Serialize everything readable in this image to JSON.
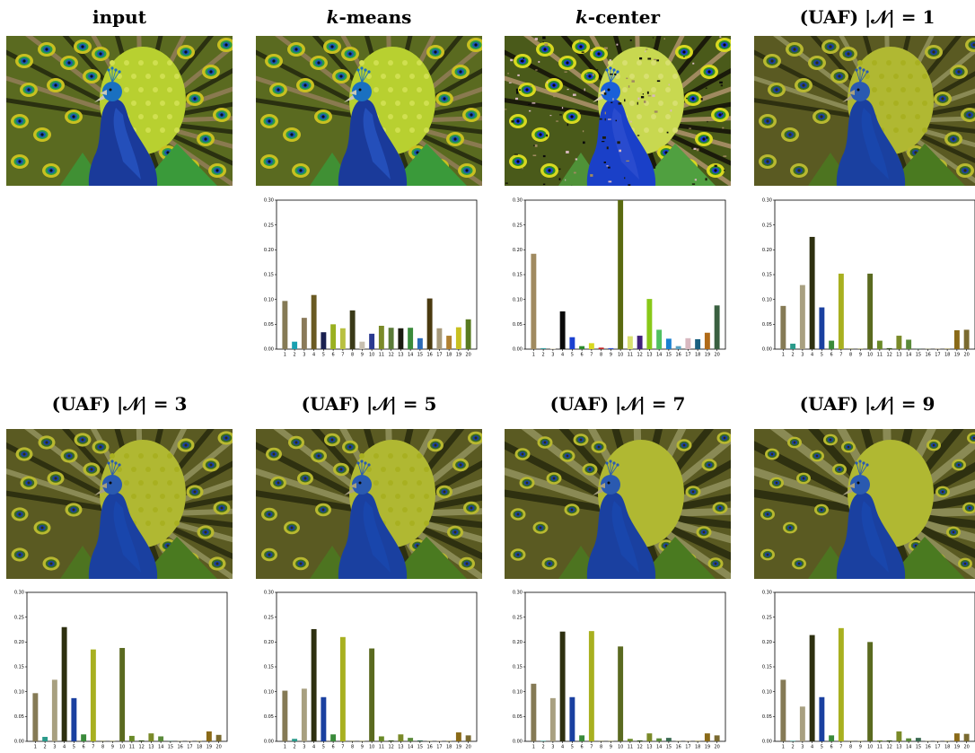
{
  "panels": [
    {
      "title": "input",
      "title_math": "",
      "image": "peacock-original",
      "has_chart": false
    },
    {
      "title": "k",
      "title_math": "-means",
      "image": "peacock-kmeans",
      "has_chart": true
    },
    {
      "title": "k",
      "title_math": "-center",
      "image": "peacock-kcenter",
      "has_chart": true
    },
    {
      "title": "(UAF) |𝒩| = 1",
      "title_math": "",
      "image": "peacock-uaf1",
      "has_chart": true
    },
    {
      "title": "(UAF) |𝒩| = 3",
      "title_math": "",
      "image": "peacock-uaf3",
      "has_chart": true
    },
    {
      "title": "(UAF) |𝒩| = 5",
      "title_math": "",
      "image": "peacock-uaf5",
      "has_chart": true
    },
    {
      "title": "(UAF) |𝒩| = 7",
      "title_math": "",
      "image": "peacock-uaf7",
      "has_chart": true
    },
    {
      "title": "(UAF) |𝒩| = 9",
      "title_math": "",
      "image": "peacock-uaf9",
      "has_chart": true
    }
  ],
  "chart_data": [
    {
      "type": "bar",
      "panel": 1,
      "categories": [
        "1",
        "2",
        "3",
        "4",
        "5",
        "6",
        "7",
        "8",
        "9",
        "10",
        "11",
        "12",
        "13",
        "14",
        "15",
        "16",
        "17",
        "18",
        "19",
        "20"
      ],
      "values": [
        0.097,
        0.015,
        0.063,
        0.109,
        0.034,
        0.05,
        0.042,
        0.078,
        0.015,
        0.031,
        0.047,
        0.043,
        0.042,
        0.043,
        0.022,
        0.102,
        0.042,
        0.027,
        0.044,
        0.06
      ],
      "colors": [
        "#857a55",
        "#1aa0b0",
        "#8a7a5a",
        "#6a5a22",
        "#1a2050",
        "#9ab020",
        "#b8c040",
        "#3a3a18",
        "#c8c0b0",
        "#2a3a90",
        "#7a8a28",
        "#5a7a38",
        "#1a1a10",
        "#3a8a3a",
        "#2a6ab8",
        "#4a3a10",
        "#a89a7a",
        "#b08030",
        "#c8c020",
        "#587a20"
      ],
      "ylim": [
        0,
        0.3
      ],
      "yticks": [
        "0.00",
        "0.05",
        "0.10",
        "0.15",
        "0.20",
        "0.25",
        "0.30"
      ]
    },
    {
      "type": "bar",
      "panel": 2,
      "categories": [
        "1",
        "2",
        "3",
        "4",
        "5",
        "6",
        "7",
        "8",
        "9",
        "10",
        "11",
        "12",
        "13",
        "14",
        "15",
        "16",
        "17",
        "18",
        "19",
        "20"
      ],
      "values": [
        0.192,
        0.002,
        0.001,
        0.076,
        0.024,
        0.006,
        0.012,
        0.003,
        0.002,
        0.3,
        0.026,
        0.027,
        0.101,
        0.039,
        0.021,
        0.006,
        0.022,
        0.02,
        0.033,
        0.088
      ],
      "colors": [
        "#a08a60",
        "#3aa0a0",
        "#d8d0b0",
        "#0a0a0a",
        "#1a40d0",
        "#2a8a2a",
        "#d8d820",
        "#c02020",
        "#3050d0",
        "#5a6a10",
        "#d8e070",
        "#40207a",
        "#88c818",
        "#50c060",
        "#1a80d0",
        "#5aa0c0",
        "#d8b8c0",
        "#1a6080",
        "#b06a18",
        "#3a6040"
      ],
      "ylim": [
        0,
        0.3
      ],
      "yticks": [
        "0.00",
        "0.05",
        "0.10",
        "0.15",
        "0.20",
        "0.25",
        "0.30"
      ]
    },
    {
      "type": "bar",
      "panel": 3,
      "categories": [
        "1",
        "2",
        "3",
        "4",
        "5",
        "6",
        "7",
        "8",
        "9",
        "10",
        "11",
        "12",
        "13",
        "14",
        "15",
        "16",
        "17",
        "18",
        "19",
        "20"
      ],
      "values": [
        0.087,
        0.011,
        0.129,
        0.226,
        0.084,
        0.017,
        0.152,
        0.001,
        0.001,
        0.152,
        0.017,
        0.002,
        0.027,
        0.019,
        0.001,
        0.001,
        0.001,
        0.001,
        0.038,
        0.039
      ],
      "colors": [
        "#857a55",
        "#2a9a8a",
        "#a8a080",
        "#2e3010",
        "#1a40a0",
        "#3a8a3a",
        "#a8b020",
        "#6a6a2a",
        "#8a8a40",
        "#5a6a20",
        "#6a8a28",
        "#3a5a20",
        "#7a8a28",
        "#5a8a3a",
        "#3a6a50",
        "#8a8a60",
        "#9a8a6a",
        "#8a7a30",
        "#8a6a18",
        "#7a6a30"
      ],
      "ylim": [
        0,
        0.3
      ],
      "yticks": [
        "0.00",
        "0.05",
        "0.10",
        "0.15",
        "0.20",
        "0.25",
        "0.30"
      ]
    },
    {
      "type": "bar",
      "panel": 4,
      "categories": [
        "1",
        "2",
        "3",
        "4",
        "5",
        "6",
        "7",
        "8",
        "9",
        "10",
        "11",
        "12",
        "13",
        "14",
        "15",
        "16",
        "17",
        "18",
        "19",
        "20"
      ],
      "values": [
        0.097,
        0.009,
        0.124,
        0.23,
        0.087,
        0.014,
        0.185,
        0.001,
        0.001,
        0.188,
        0.011,
        0.002,
        0.016,
        0.01,
        0.001,
        0.001,
        0.001,
        0.001,
        0.02,
        0.013
      ],
      "colors": [
        "#857a55",
        "#2a9a8a",
        "#a8a080",
        "#2e3010",
        "#1a40a0",
        "#3a8a3a",
        "#a8b020",
        "#6a6a2a",
        "#8a8a40",
        "#5a6a20",
        "#6a8a28",
        "#3a5a20",
        "#7a8a28",
        "#5a8a3a",
        "#3a6a50",
        "#8a8a60",
        "#9a8a6a",
        "#8a7a30",
        "#8a6a18",
        "#7a6a30"
      ],
      "ylim": [
        0,
        0.3
      ],
      "yticks": [
        "0.00",
        "0.05",
        "0.10",
        "0.15",
        "0.20",
        "0.25",
        "0.30"
      ]
    },
    {
      "type": "bar",
      "panel": 5,
      "categories": [
        "1",
        "2",
        "3",
        "4",
        "5",
        "6",
        "7",
        "8",
        "9",
        "10",
        "11",
        "12",
        "13",
        "14",
        "15",
        "16",
        "17",
        "18",
        "19",
        "20"
      ],
      "values": [
        0.102,
        0.005,
        0.106,
        0.226,
        0.089,
        0.014,
        0.21,
        0.001,
        0.001,
        0.187,
        0.01,
        0.002,
        0.014,
        0.007,
        0.002,
        0.001,
        0.001,
        0.001,
        0.018,
        0.012
      ],
      "colors": [
        "#857a55",
        "#2a9a8a",
        "#a8a080",
        "#2e3010",
        "#1a40a0",
        "#3a8a3a",
        "#a8b020",
        "#6a6a2a",
        "#8a8a40",
        "#5a6a20",
        "#6a8a28",
        "#3a5a20",
        "#7a8a28",
        "#5a8a3a",
        "#3a6a50",
        "#8a8a60",
        "#9a8a6a",
        "#8a7a30",
        "#8a6a18",
        "#7a6a30"
      ],
      "ylim": [
        0,
        0.3
      ],
      "yticks": [
        "0.00",
        "0.05",
        "0.10",
        "0.15",
        "0.20",
        "0.25",
        "0.30"
      ]
    },
    {
      "type": "bar",
      "panel": 6,
      "categories": [
        "1",
        "2",
        "3",
        "4",
        "5",
        "6",
        "7",
        "8",
        "9",
        "10",
        "11",
        "12",
        "13",
        "14",
        "15",
        "16",
        "17",
        "18",
        "19",
        "20"
      ],
      "values": [
        0.116,
        0.001,
        0.087,
        0.221,
        0.089,
        0.012,
        0.222,
        0.001,
        0.001,
        0.191,
        0.005,
        0.002,
        0.016,
        0.006,
        0.007,
        0.001,
        0.001,
        0.001,
        0.016,
        0.012
      ],
      "colors": [
        "#857a55",
        "#2a9a8a",
        "#a8a080",
        "#2e3010",
        "#1a40a0",
        "#3a8a3a",
        "#a8b020",
        "#6a6a2a",
        "#8a8a40",
        "#5a6a20",
        "#6a8a28",
        "#3a5a20",
        "#7a8a28",
        "#5a8a3a",
        "#3a6a50",
        "#8a8a60",
        "#9a8a6a",
        "#8a7a30",
        "#8a6a18",
        "#7a6a30"
      ],
      "ylim": [
        0,
        0.3
      ],
      "yticks": [
        "0.00",
        "0.05",
        "0.10",
        "0.15",
        "0.20",
        "0.25",
        "0.30"
      ]
    },
    {
      "type": "bar",
      "panel": 7,
      "categories": [
        "1",
        "2",
        "3",
        "4",
        "5",
        "6",
        "7",
        "8",
        "9",
        "10",
        "11",
        "12",
        "13",
        "14",
        "15",
        "16",
        "17",
        "18",
        "19",
        "20"
      ],
      "values": [
        0.124,
        0.001,
        0.07,
        0.214,
        0.089,
        0.012,
        0.228,
        0.001,
        0.001,
        0.2,
        0.002,
        0.002,
        0.02,
        0.006,
        0.007,
        0.001,
        0.001,
        0.001,
        0.016,
        0.015
      ],
      "colors": [
        "#857a55",
        "#2a9a8a",
        "#a8a080",
        "#2e3010",
        "#1a40a0",
        "#3a8a3a",
        "#a8b020",
        "#6a6a2a",
        "#8a8a40",
        "#5a6a20",
        "#6a8a28",
        "#3a5a20",
        "#7a8a28",
        "#5a8a3a",
        "#3a6a50",
        "#8a8a60",
        "#9a8a6a",
        "#8a7a30",
        "#8a6a18",
        "#7a6a30"
      ],
      "ylim": [
        0,
        0.3
      ],
      "yticks": [
        "0.00",
        "0.05",
        "0.10",
        "0.15",
        "0.20",
        "0.25",
        "0.30"
      ]
    }
  ]
}
